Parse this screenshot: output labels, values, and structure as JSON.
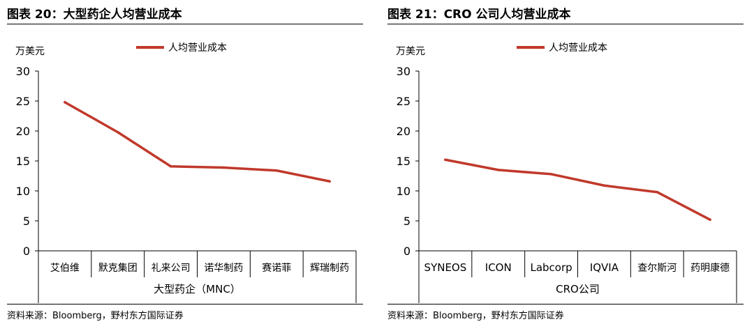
{
  "chart_data": [
    {
      "type": "line",
      "figure_title": "图表 20：大型药企人均营业成本",
      "unit_label": "万美元",
      "categories": [
        "艾伯维",
        "默克集团",
        "礼来公司",
        "诺华制药",
        "赛诺菲",
        "辉瑞制药"
      ],
      "series": [
        {
          "name": "人均营业成本",
          "values": [
            24.8,
            19.8,
            14.1,
            13.9,
            13.4,
            11.6
          ]
        }
      ],
      "xlabel": "大型药企（MNC）",
      "ylim": [
        0,
        30
      ],
      "yticks": [
        0,
        5,
        10,
        15,
        20,
        25,
        30
      ],
      "legend_position": "top",
      "grid": false,
      "line_color": "#C0392B",
      "source": "资料来源：Bloomberg，野村东方国际证券"
    },
    {
      "type": "line",
      "figure_title": "图表 21：CRO 公司人均营业成本",
      "unit_label": "万美元",
      "categories": [
        "SYNEOS",
        "ICON",
        "Labcorp",
        "IQVIA",
        "查尔斯河",
        "药明康德"
      ],
      "series": [
        {
          "name": "人均营业成本",
          "values": [
            15.2,
            13.5,
            12.8,
            10.9,
            9.8,
            5.2
          ]
        }
      ],
      "xlabel": "CRO公司",
      "ylim": [
        0,
        30
      ],
      "yticks": [
        0,
        5,
        10,
        15,
        20,
        25,
        30
      ],
      "legend_position": "top",
      "grid": false,
      "line_color": "#C0392B",
      "source": "资料来源：Bloomberg，野村东方国际证券"
    }
  ]
}
